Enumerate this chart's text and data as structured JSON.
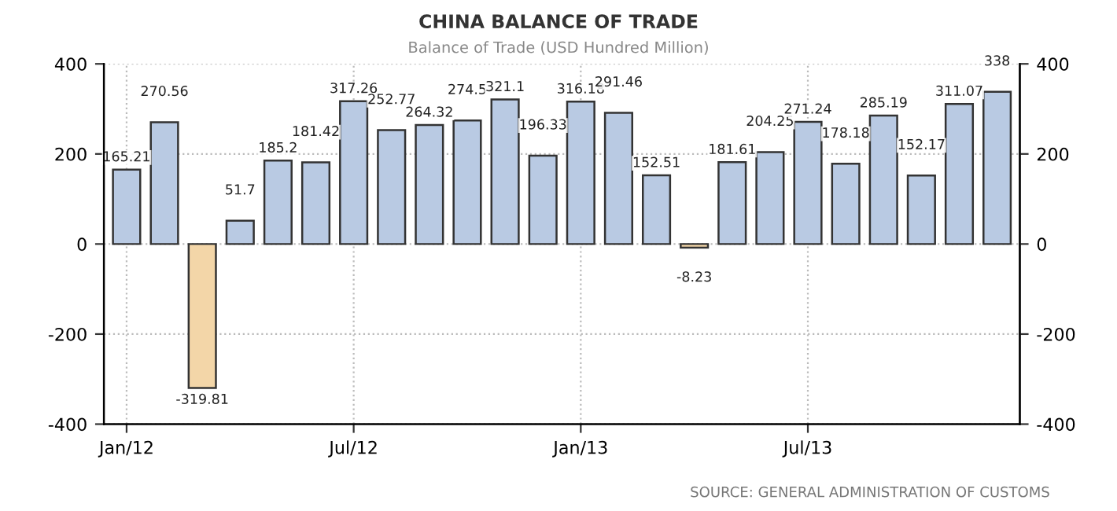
{
  "chart_data": {
    "type": "bar",
    "title": "CHINA BALANCE OF TRADE",
    "subtitle": "Balance of Trade (USD Hundred Million)",
    "categories": [
      "Jan/12",
      null,
      null,
      null,
      null,
      null,
      "Jul/12",
      null,
      null,
      null,
      null,
      null,
      "Jan/13",
      null,
      null,
      null,
      null,
      null,
      "Jul/13",
      null,
      null,
      null,
      null,
      null
    ],
    "values": [
      165.21,
      270.56,
      -319.81,
      51.7,
      185.2,
      181.42,
      317.26,
      252.77,
      264.32,
      274.5,
      321.1,
      196.33,
      316.18,
      291.46,
      152.51,
      -8.23,
      181.61,
      204.25,
      271.24,
      178.18,
      285.19,
      152.17,
      311.07,
      338
    ],
    "colors": [
      "#b9cae3",
      "#b9cae3",
      "#f3d6a8",
      "#b9cae3",
      "#b9cae3",
      "#b9cae3",
      "#b9cae3",
      "#b9cae3",
      "#b9cae3",
      "#b9cae3",
      "#b9cae3",
      "#b9cae3",
      "#b9cae3",
      "#b9cae3",
      "#b9cae3",
      "#f3d6a8",
      "#b9cae3",
      "#b9cae3",
      "#b9cae3",
      "#b9cae3",
      "#b9cae3",
      "#b9cae3",
      "#b9cae3",
      "#b9cae3"
    ],
    "data_labels": true,
    "ylim": [
      -400,
      400
    ],
    "yticks": [
      -400,
      -200,
      0,
      200,
      400
    ],
    "y2lim": [
      -400,
      400
    ],
    "y2ticks": [
      -400,
      -200,
      0,
      200,
      400
    ],
    "grid": true,
    "annotations": [
      "SOURCE: GENERAL ADMINISTRATION OF CUSTOMS"
    ]
  }
}
